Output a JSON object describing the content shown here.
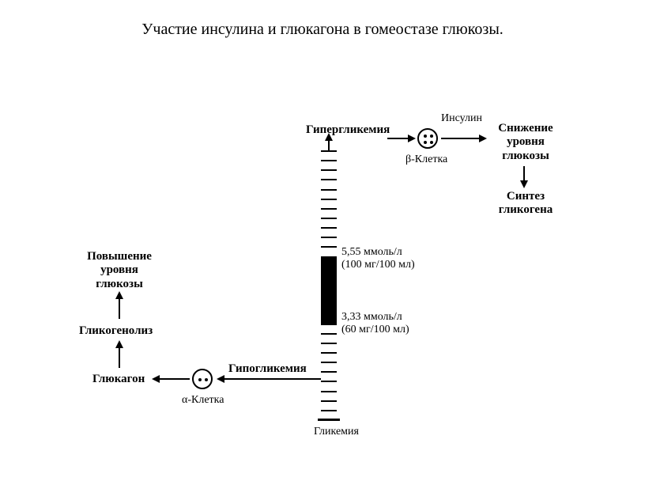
{
  "title": "Участие инсулина и глюкагона в гомеостазе глюкозы.",
  "scale": {
    "label": "Гликемия",
    "upper_marker": {
      "value": "5,55 ммоль/л",
      "alt": "(100 мг/100 мл)"
    },
    "lower_marker": {
      "value": "3,33 ммоль/л",
      "alt": "(60 мг/100 мл)"
    },
    "tick_count": 29,
    "normal_fill_top_idx": 11,
    "normal_fill_bottom_idx": 18,
    "tick_color": "#000000",
    "fill_color": "#000000"
  },
  "upper": {
    "condition": "Гипергликемия",
    "cell_label": "β-Клетка",
    "cell_dots": 4,
    "hormone": "Инсулин",
    "effect": {
      "line1": "Снижение",
      "line2": "уровня",
      "line3": "глюкозы"
    },
    "result": {
      "line1": "Синтез",
      "line2": "гликогена"
    }
  },
  "lower": {
    "condition": "Гипогликемия",
    "cell_label": "α-Клетка",
    "cell_dots": 2,
    "hormone": "Глюкагон",
    "process": "Гликогенолиз",
    "effect": {
      "line1": "Повышение",
      "line2": "уровня",
      "line3": "глюкозы"
    }
  },
  "colors": {
    "bg": "#ffffff",
    "fg": "#000000"
  },
  "arrow": {
    "head_size": 10,
    "stroke": 2
  }
}
